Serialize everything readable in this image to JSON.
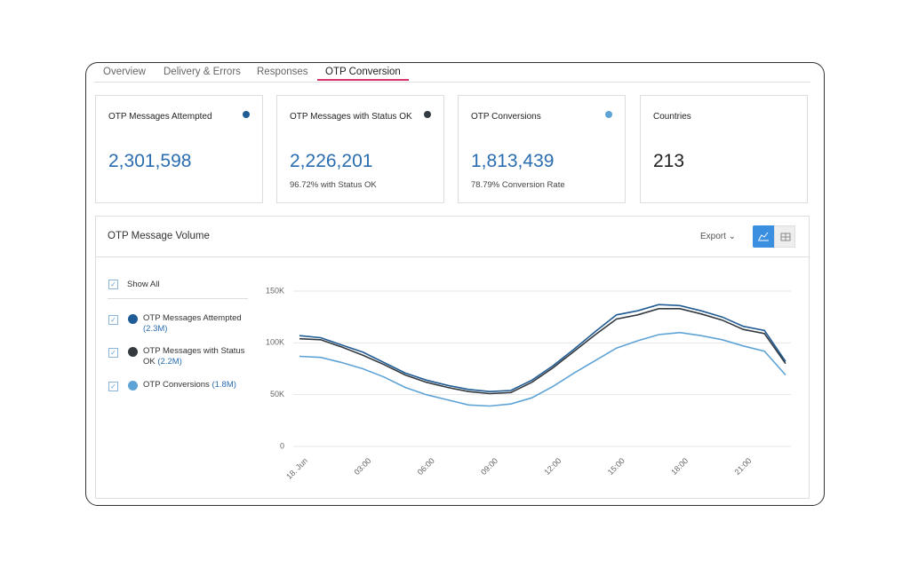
{
  "tabs": {
    "items": [
      "Overview",
      "Delivery & Errors",
      "Responses",
      "OTP Conversion"
    ],
    "active": 3
  },
  "cards": [
    {
      "title": "OTP Messages Attempted",
      "value": "2,301,598",
      "color": "#1f5b94"
    },
    {
      "title": "OTP Messages with Status OK",
      "value": "2,226,201",
      "subtitle": "96.72% with Status OK",
      "color": "#333a40"
    },
    {
      "title": "OTP Conversions",
      "value": "1,813,439",
      "subtitle": "78.79% Conversion Rate",
      "color": "#5ea3d6"
    },
    {
      "title": "Countries",
      "value": "213"
    }
  ],
  "panel": {
    "title": "OTP Message Volume",
    "export": "Export",
    "show_all": "Show All"
  },
  "chart_data": {
    "type": "line",
    "categories": [
      "18. Jun",
      null,
      null,
      "03:00",
      null,
      null,
      "06:00",
      null,
      null,
      "09:00",
      null,
      null,
      "12:00",
      null,
      null,
      "15:00",
      null,
      null,
      "18:00",
      null,
      null,
      "21:00",
      null,
      null
    ],
    "series": [
      {
        "name": "OTP Messages Attempted",
        "total": "(2.3M)",
        "color": "#1f5b94",
        "values": [
          107000,
          105000,
          98000,
          91000,
          81000,
          71000,
          64000,
          59000,
          55000,
          53000,
          54000,
          64000,
          78000,
          94000,
          111000,
          127000,
          131000,
          137000,
          136000,
          131000,
          125000,
          116000,
          112000,
          82000
        ]
      },
      {
        "name": "OTP Messages with Status OK",
        "total": "(2.2M)",
        "color": "#333a40",
        "values": [
          104000,
          103000,
          96000,
          88000,
          79000,
          69000,
          62000,
          57000,
          53000,
          51000,
          52000,
          62000,
          76000,
          92000,
          108000,
          123000,
          127000,
          133000,
          133000,
          128000,
          122000,
          113000,
          109000,
          80000
        ]
      },
      {
        "name": "OTP Conversions",
        "total": "(1.8M)",
        "color": "#5ea3d6",
        "values": [
          87000,
          86000,
          81000,
          75000,
          67000,
          57000,
          50000,
          45000,
          40000,
          39000,
          41000,
          47000,
          58000,
          71000,
          83000,
          95000,
          102000,
          108000,
          110000,
          107000,
          103000,
          97000,
          92000,
          69000
        ]
      }
    ],
    "ylim": [
      0,
      150000
    ],
    "yticks": [
      0,
      {
        "value": 50000,
        "label": "50K"
      },
      {
        "value": 100000,
        "label": "100K"
      },
      {
        "value": 150000,
        "label": "150K"
      }
    ],
    "grid": true
  }
}
